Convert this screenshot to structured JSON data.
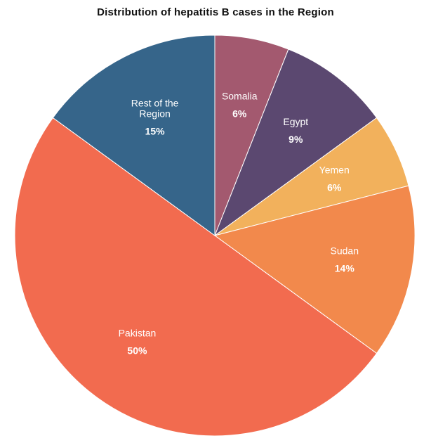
{
  "chart_data": {
    "type": "pie",
    "title": "Distribution of hepatitis B cases in the Region",
    "slices": [
      {
        "name": "Somalia",
        "value": 6,
        "value_label": "6%",
        "color": "#a3596f"
      },
      {
        "name": "Egypt",
        "value": 9,
        "value_label": "9%",
        "color": "#5b4870"
      },
      {
        "name": "Yemen",
        "value": 6,
        "value_label": "6%",
        "color": "#f2b15c"
      },
      {
        "name": "Sudan",
        "value": 14,
        "value_label": "14%",
        "color": "#f2894c"
      },
      {
        "name": "Pakistan",
        "value": 50,
        "value_label": "50%",
        "color": "#f26b4f"
      },
      {
        "name": "Rest of the Region",
        "value": 15,
        "value_label": "15%",
        "color": "#36658a"
      }
    ],
    "start_angle_deg": 0,
    "direction": "clockwise",
    "legend": "none"
  }
}
